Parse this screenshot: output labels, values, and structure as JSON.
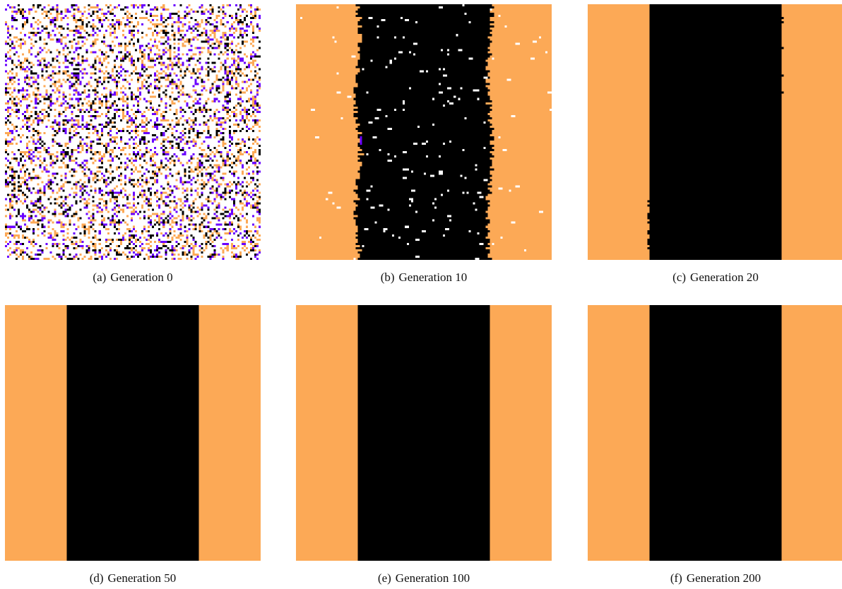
{
  "colors": {
    "empty": "#ffffff",
    "orange": "#fca956",
    "black": "#000000",
    "purple": "#6a00ff"
  },
  "panels": [
    {
      "tag": "(a)",
      "caption": "Generation 0",
      "state": "random"
    },
    {
      "tag": "(b)",
      "caption": "Generation 10",
      "state": "bands-noisy",
      "band_left": 0.24,
      "band_right": 0.76
    },
    {
      "tag": "(c)",
      "caption": "Generation 20",
      "state": "bands-clean",
      "band_left": 0.24,
      "band_right": 0.76
    },
    {
      "tag": "(d)",
      "caption": "Generation 50",
      "state": "bands-clean",
      "band_left": 0.24,
      "band_right": 0.76
    },
    {
      "tag": "(e)",
      "caption": "Generation 100",
      "state": "bands-clean",
      "band_left": 0.24,
      "band_right": 0.76
    },
    {
      "tag": "(f)",
      "caption": "Generation 200",
      "state": "bands-clean",
      "band_left": 0.24,
      "band_right": 0.76
    }
  ]
}
